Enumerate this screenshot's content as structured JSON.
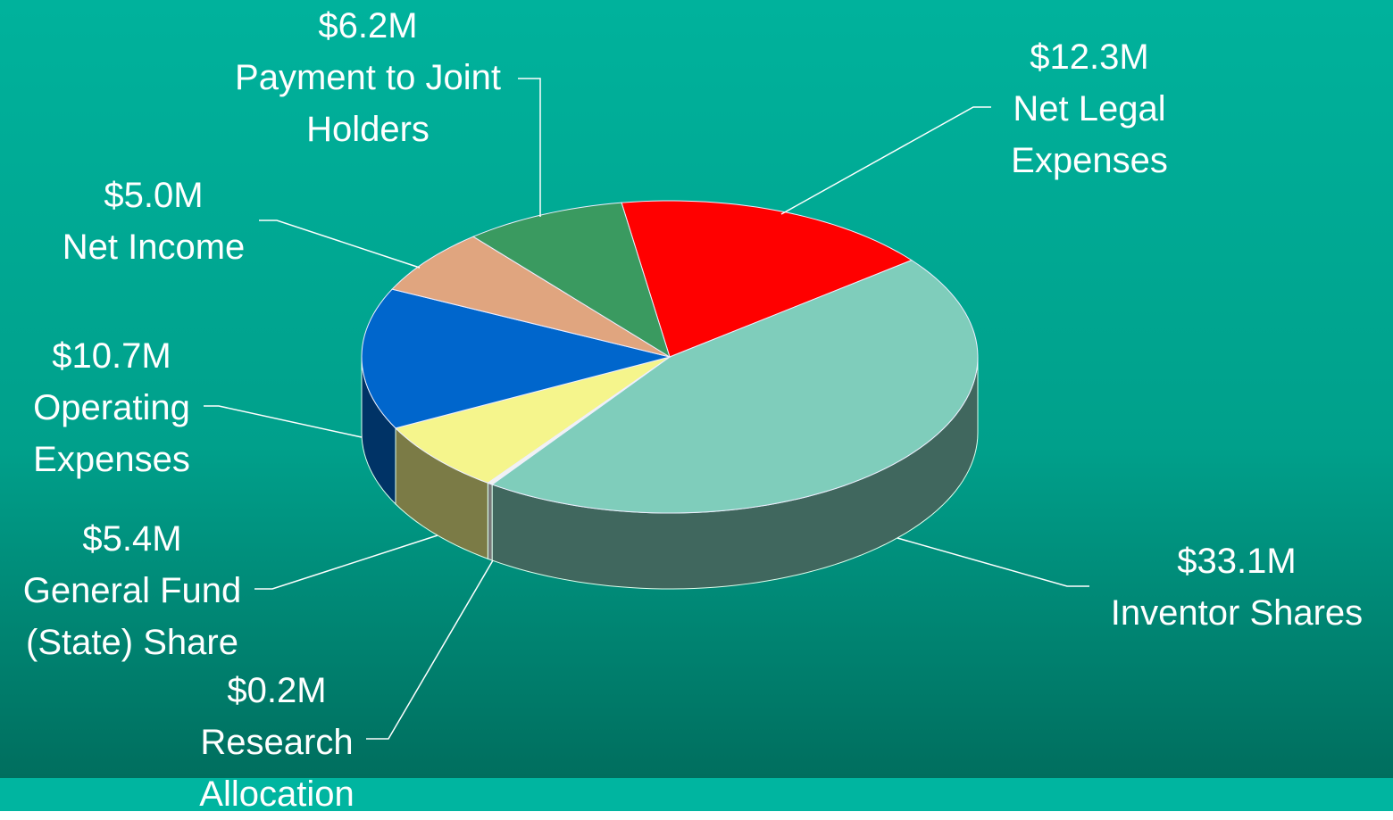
{
  "chart_data": {
    "type": "pie",
    "categories": [
      "Net Legal Expenses",
      "Inventor Shares",
      "Research Allocation",
      "General Fund (State) Share",
      "Operating Expenses",
      "Net Income",
      "Payment to Joint Holders"
    ],
    "values": [
      12.3,
      33.1,
      0.2,
      5.4,
      10.7,
      5.0,
      6.2
    ],
    "value_labels": [
      "$12.3M",
      "$33.1M",
      "$0.2M",
      "$5.4M",
      "$10.7M",
      "$5.0M",
      "$6.2M"
    ],
    "colors": [
      "#ff0000",
      "#7fcdbb",
      "#f2f2f2",
      "#f5f58c",
      "#0066cc",
      "#e0a57f",
      "#3a9a60"
    ],
    "start_angle": -99,
    "direction": "clockwise",
    "three_d": true
  }
}
